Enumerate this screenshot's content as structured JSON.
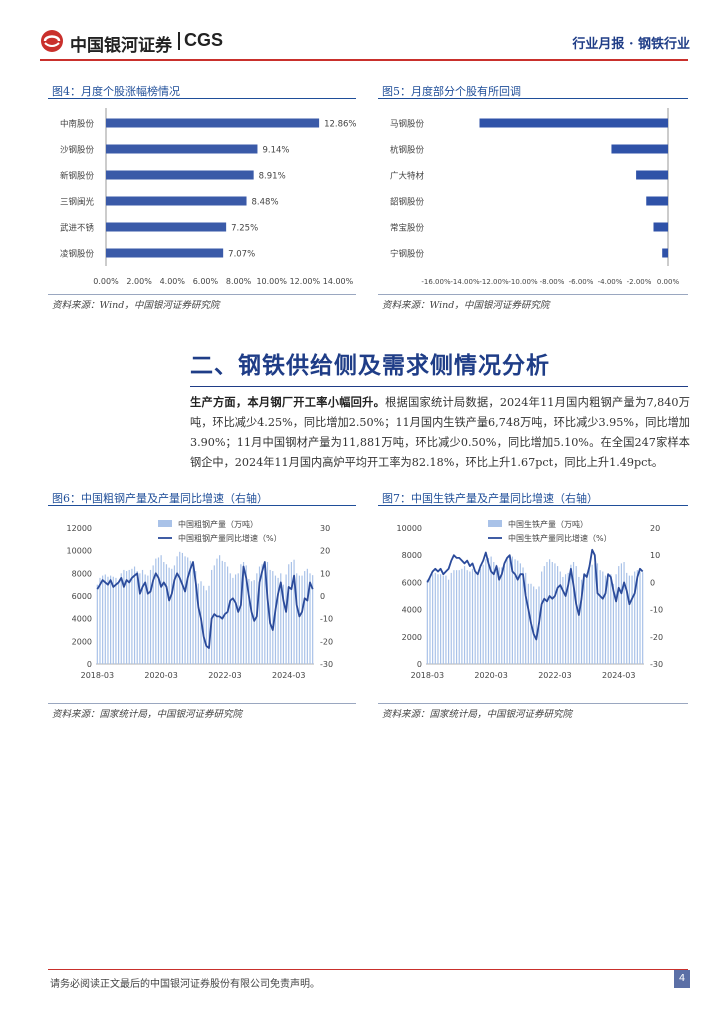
{
  "header": {
    "brand_cn": "中国银河证券",
    "brand_en": "CGS",
    "report_type": "行业月报 · 钢铁行业"
  },
  "figure4": {
    "title": "图4：月度个股涨幅榜情况",
    "source": "资料来源：Wind，中国银河证券研究院",
    "chart_data": {
      "type": "bar",
      "orientation": "horizontal",
      "categories": [
        "中南股份",
        "沙钢股份",
        "新钢股份",
        "三钢闽光",
        "武进不锈",
        "凌钢股份"
      ],
      "values": [
        12.86,
        9.14,
        8.91,
        8.48,
        7.25,
        7.07
      ],
      "value_labels": [
        "12.86%",
        "9.14%",
        "8.91%",
        "8.48%",
        "7.25%",
        "7.07%"
      ],
      "xlim": [
        0,
        14
      ],
      "tick_labels": [
        "0.00%",
        "2.00%",
        "4.00%",
        "6.00%",
        "8.00%",
        "10.00%",
        "12.00%",
        "14.00%"
      ],
      "color": "#3a5aa8"
    }
  },
  "figure5": {
    "title": "图5：月度部分个股有所回调",
    "source": "资料来源：Wind，中国银河证券研究院",
    "chart_data": {
      "type": "bar",
      "orientation": "horizontal",
      "categories": [
        "马钢股份",
        "杭钢股份",
        "广大特材",
        "韶钢股份",
        "常宝股份",
        "宁钢股份"
      ],
      "values": [
        -13.0,
        -3.9,
        -2.2,
        -1.5,
        -1.0,
        -0.4
      ],
      "xlim": [
        -16,
        0
      ],
      "tick_labels": [
        "-16.00%",
        "-14.00%",
        "-12.00%",
        "-10.00%",
        "-8.00%",
        "-6.00%",
        "-4.00%",
        "-2.00%",
        "0.00%"
      ],
      "color": "#2f52a8"
    }
  },
  "section": {
    "title": "二、钢铁供给侧及需求侧情况分析",
    "lead": "生产方面，本月钢厂开工率小幅回升。",
    "body": "根据国家统计局数据，2024年11月国内粗钢产量为7,840万吨，环比减少4.25%，同比增加2.50%；11月国内生铁产量6,748万吨，环比减少3.95%，同比增加3.90%；11月中国钢材产量为11,881万吨，环比减少0.50%，同比增加5.10%。在全国247家样本钢企中，2024年11月国内高炉平均开工率为82.18%，环比上升1.67pct，同比上升1.49pct。"
  },
  "figure6": {
    "title": "图6：中国粗钢产量及产量同比增速（右轴）",
    "source": "资料来源：国家统计局，中国银河证券研究院",
    "chart_data": {
      "type": "bar+line",
      "legend": [
        "中国粗钢产量（万吨）",
        "中国粗钢产量同比增速（%）"
      ],
      "x_tick_labels": [
        "2018-03",
        "2020-03",
        "2022-03",
        "2024-03"
      ],
      "ylim_left": [
        0,
        12000
      ],
      "ylim_right": [
        -30,
        30
      ],
      "left_ticks": [
        "0",
        "2000",
        "4000",
        "6000",
        "8000",
        "10000",
        "12000"
      ],
      "right_ticks": [
        "-30",
        "-20",
        "-10",
        "0",
        "10",
        "20",
        "30"
      ],
      "bar_values": [
        7000,
        7600,
        7800,
        7900,
        7700,
        7800,
        7700,
        7600,
        7200,
        8000,
        8300,
        8200,
        8300,
        8400,
        8600,
        8200,
        8000,
        8300,
        7900,
        7800,
        8300,
        8700,
        9300,
        9400,
        9600,
        9000,
        8800,
        8500,
        8400,
        8700,
        9500,
        9900,
        9800,
        9500,
        9400,
        9100,
        8600,
        8200,
        7100,
        7300,
        6900,
        6500,
        6900,
        8300,
        8700,
        9300,
        9600,
        9100,
        9000,
        8600,
        8000,
        7600,
        7900,
        8000,
        8800,
        9000,
        8700,
        7500,
        7300,
        7400,
        8000,
        8600,
        8800,
        8900,
        9000,
        8300,
        8200,
        7800,
        7600,
        8000,
        7000,
        7900,
        8800,
        9000,
        9200,
        8000,
        7800,
        7800,
        8200,
        8400,
        8000,
        7840
      ],
      "line_values": [
        3,
        5,
        7,
        6,
        5,
        7,
        4,
        5,
        6,
        8,
        4,
        7,
        6,
        8,
        9,
        10,
        1,
        4,
        6,
        1,
        2,
        7,
        10,
        8,
        4,
        6,
        4,
        -2,
        1,
        7,
        10,
        8,
        5,
        2,
        8,
        12,
        15,
        6,
        -5,
        -10,
        -18,
        -22,
        -23,
        -10,
        -8,
        -9,
        -9,
        -10,
        -8,
        -7,
        -2,
        -1,
        -3,
        -7,
        -4,
        13,
        8,
        0,
        -7,
        -11,
        -9,
        6,
        11,
        15,
        -1,
        -12,
        -15,
        -6,
        1,
        6,
        -2,
        -7,
        4,
        3,
        9,
        -4,
        -9,
        -7,
        -1,
        -2,
        6,
        3
      ]
    }
  },
  "figure7": {
    "title": "图7：中国生铁产量及产量同比增速（右轴）",
    "source": "资料来源：国家统计局，中国银河证券研究院",
    "chart_data": {
      "type": "bar+line",
      "legend": [
        "中国生铁产量（万吨）",
        "中国生铁产量同比增速（%）"
      ],
      "x_tick_labels": [
        "2018-03",
        "2020-03",
        "2022-03",
        "2024-03"
      ],
      "ylim_left": [
        0,
        10000
      ],
      "ylim_right": [
        -30,
        20
      ],
      "left_ticks": [
        "0",
        "2000",
        "4000",
        "6000",
        "8000",
        "10000"
      ],
      "right_ticks": [
        "-30",
        "-20",
        "-10",
        "0",
        "10",
        "20"
      ],
      "bar_values": [
        6200,
        6500,
        6600,
        6700,
        6600,
        6600,
        6500,
        6500,
        6200,
        6700,
        6900,
        6900,
        6900,
        7000,
        7200,
        6900,
        6800,
        7000,
        6700,
        6600,
        7000,
        7300,
        7700,
        7800,
        7900,
        7500,
        7300,
        7100,
        7100,
        7200,
        7800,
        8000,
        7900,
        7700,
        7600,
        7400,
        7100,
        6700,
        5900,
        5900,
        5700,
        5500,
        5700,
        6800,
        7200,
        7500,
        7700,
        7500,
        7400,
        7200,
        6800,
        6400,
        6600,
        6700,
        7300,
        7500,
        7200,
        6400,
        6200,
        6300,
        6700,
        7200,
        7300,
        7400,
        7400,
        6900,
        6800,
        6500,
        6300,
        6600,
        5900,
        6600,
        7200,
        7400,
        7500,
        6700,
        6500,
        6500,
        6800,
        6900,
        6800,
        6748
      ],
      "line_values": [
        0,
        2,
        4,
        5,
        4,
        5,
        3,
        4,
        5,
        8,
        10,
        9,
        9,
        8,
        7,
        8,
        6,
        7,
        4,
        3,
        6,
        8,
        11,
        7,
        4,
        3,
        6,
        1,
        3,
        7,
        9,
        10,
        4,
        3,
        1,
        3,
        3,
        -5,
        -10,
        -15,
        -19,
        -21,
        -15,
        -8,
        -6,
        -7,
        -5,
        -6,
        -5,
        -2,
        -1,
        -3,
        -5,
        -1,
        5,
        -1,
        -8,
        -12,
        -6,
        3,
        2,
        6,
        12,
        10,
        -4,
        -5,
        -6,
        -4,
        3,
        2,
        -3,
        -7,
        -2,
        -4,
        0,
        -3,
        -8,
        -6,
        -4,
        2,
        5,
        4
      ]
    }
  },
  "footer": {
    "disclaimer": "请务必阅读正文最后的中国银河证券股份有限公司免责声明。",
    "page": "4"
  }
}
